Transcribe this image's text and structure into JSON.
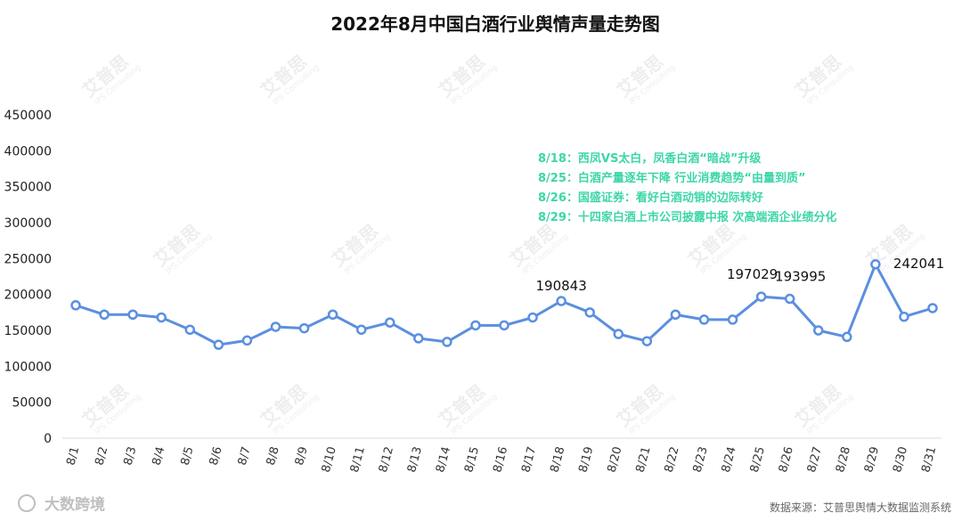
{
  "chart_data": {
    "type": "line",
    "title": "2022年8月中国白酒行业舆情声量走势图",
    "xlabel": "",
    "ylabel": "",
    "categories": [
      "8/1",
      "8/2",
      "8/3",
      "8/4",
      "8/5",
      "8/6",
      "8/7",
      "8/8",
      "8/9",
      "8/10",
      "8/11",
      "8/12",
      "8/13",
      "8/14",
      "8/15",
      "8/16",
      "8/17",
      "8/18",
      "8/19",
      "8/20",
      "8/21",
      "8/22",
      "8/23",
      "8/24",
      "8/25",
      "8/26",
      "8/27",
      "8/28",
      "8/29",
      "8/30",
      "8/31"
    ],
    "series": [
      {
        "values": [
          185000,
          172000,
          172000,
          168000,
          151000,
          130000,
          136000,
          155000,
          153000,
          172000,
          151000,
          161000,
          139000,
          134000,
          157000,
          157000,
          168000,
          190843,
          175000,
          145000,
          135000,
          172000,
          165000,
          165000,
          197029,
          193995,
          150000,
          141000,
          242041,
          169000,
          181000
        ]
      }
    ],
    "ylim": [
      0,
      450000
    ],
    "yticks": [
      0,
      50000,
      100000,
      150000,
      200000,
      250000,
      300000,
      350000,
      400000,
      450000
    ],
    "grid": false,
    "data_labels": [
      {
        "index": 17,
        "text": "190843"
      },
      {
        "index": 24,
        "text": "197029"
      },
      {
        "index": 25,
        "text": "193995"
      },
      {
        "index": 28,
        "text": "242041"
      }
    ],
    "annotations": [
      "8/18：西凤VS太白，凤香白酒“暗战”升级",
      "8/25：白酒产量逐年下降 行业消费趋势“由量到质”",
      "8/26：国盛证券：看好白酒动销的边际转好",
      "8/29：十四家白酒上市公司披露中报 次高端酒企业绩分化"
    ]
  },
  "source": "数据来源：艾普思舆情大数据监测系统",
  "brand": "大数跨境",
  "watermark": {
    "text": "艾普思",
    "sub": "IPS Consulting"
  },
  "colors": {
    "line": "#5b8fe0",
    "annotation": "#3dd6a8",
    "axis": "#d9d9d9"
  }
}
